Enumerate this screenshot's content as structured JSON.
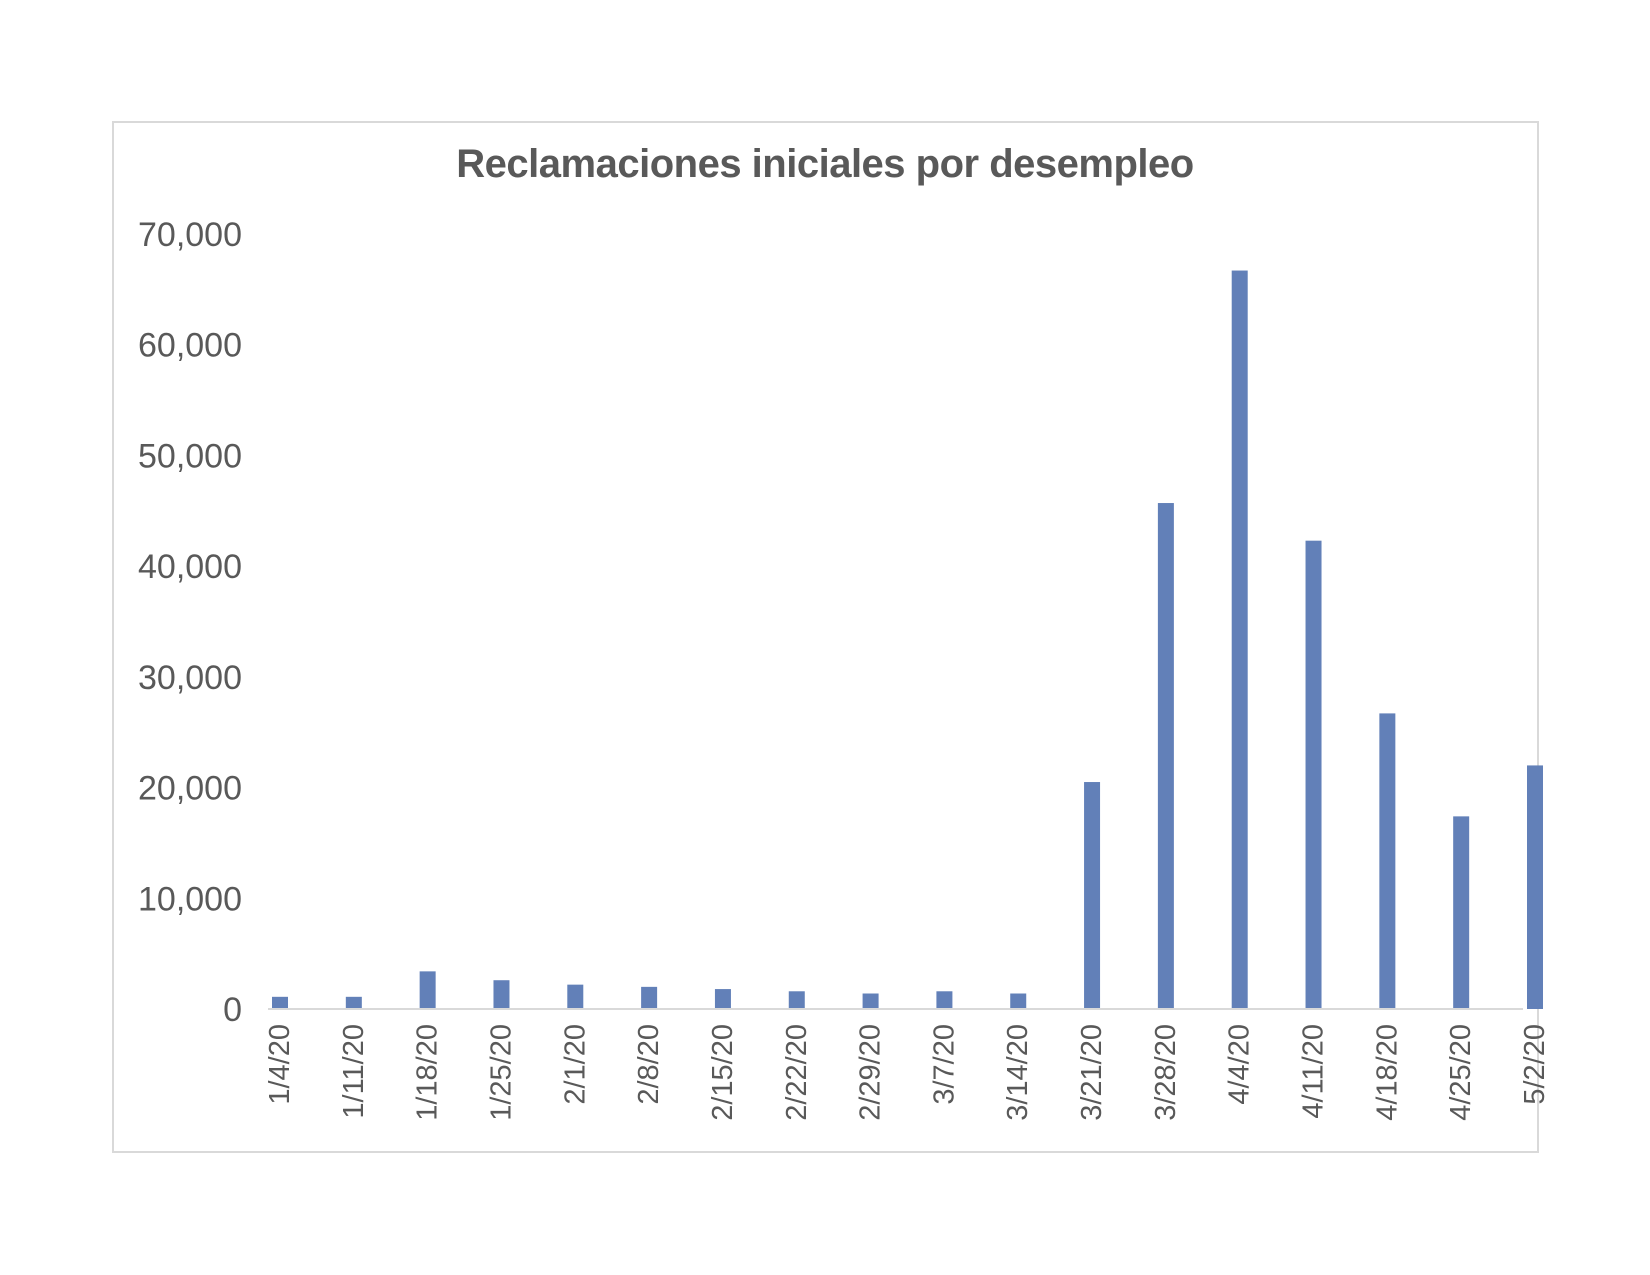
{
  "chart_data": {
    "type": "bar",
    "title": "Reclamaciones iniciales por desempleo",
    "xlabel": "",
    "ylabel": "",
    "categories": [
      "1/4/20",
      "1/11/20",
      "1/18/20",
      "1/25/20",
      "2/1/20",
      "2/8/20",
      "2/15/20",
      "2/22/20",
      "2/29/20",
      "3/7/20",
      "3/14/20",
      "3/21/20",
      "3/28/20",
      "4/4/20",
      "4/11/20",
      "4/18/20",
      "4/25/20",
      "5/2/20"
    ],
    "values": [
      1100,
      1100,
      3400,
      2600,
      2200,
      2000,
      1800,
      1600,
      1400,
      1600,
      1400,
      20500,
      45700,
      66700,
      42300,
      26700,
      17400,
      22000
    ],
    "ylim": [
      0,
      70000
    ],
    "yticks": [
      0,
      10000,
      20000,
      30000,
      40000,
      50000,
      60000,
      70000
    ],
    "ytick_labels": [
      "0",
      "10,000",
      "20,000",
      "30,000",
      "40,000",
      "50,000",
      "60,000",
      "70,000"
    ],
    "bar_color": "#6280b8",
    "grid": false,
    "legend": "none"
  }
}
